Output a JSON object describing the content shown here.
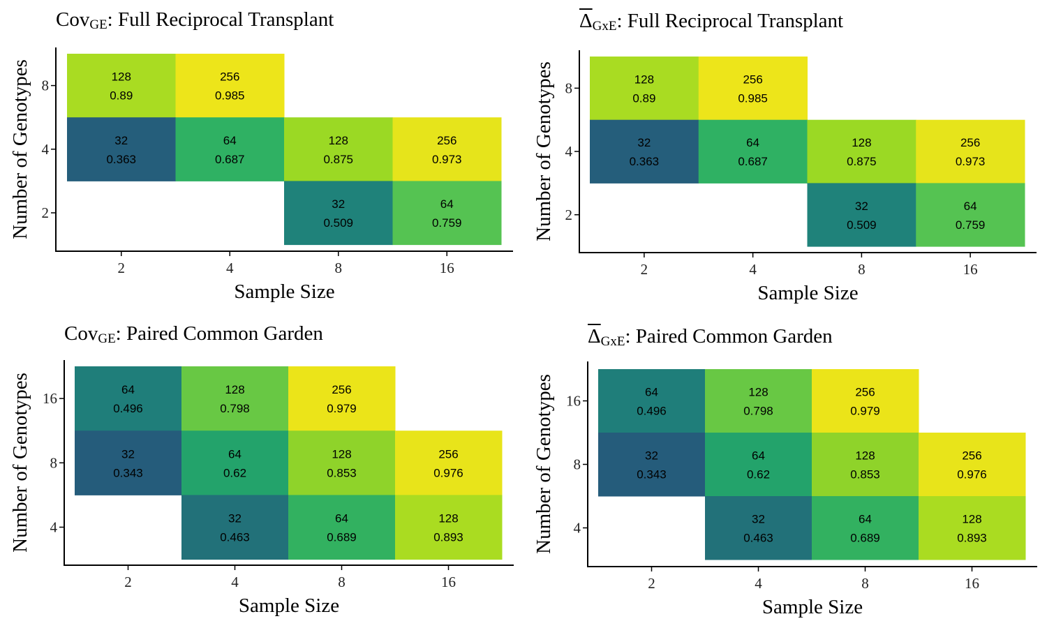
{
  "colors": {
    "0.343": "#255c7b",
    "0.363": "#255e7b",
    "0.463": "#227179",
    "0.496": "#1f7e7a",
    "0.509": "#1f827a",
    "0.62": "#23a36b",
    "0.687": "#2fb163",
    "0.689": "#32b160",
    "0.759": "#55c352",
    "0.798": "#68c844",
    "0.853": "#8fd32a",
    "0.875": "#9bd924",
    "0.89": "#a9dc22",
    "0.893": "#aadc21",
    "0.973": "#e6e41b",
    "0.976": "#e8e41a",
    "0.979": "#ebe419",
    "0.985": "#ede51a"
  },
  "chart_data": [
    {
      "type": "heatmap",
      "title_main": "Cov",
      "title_sub": "GE",
      "title_rest": ": Full Reciprocal Transplant",
      "xlabel": "Sample Size",
      "ylabel": "Number of Genotypes",
      "x_categories": [
        "2",
        "4",
        "8",
        "16"
      ],
      "y_categories": [
        "2",
        "4",
        "8"
      ],
      "cells": [
        {
          "x": "2",
          "y": "8",
          "n": "128",
          "value": "0.89"
        },
        {
          "x": "4",
          "y": "8",
          "n": "256",
          "value": "0.985"
        },
        {
          "x": "2",
          "y": "4",
          "n": "32",
          "value": "0.363"
        },
        {
          "x": "4",
          "y": "4",
          "n": "64",
          "value": "0.687"
        },
        {
          "x": "8",
          "y": "4",
          "n": "128",
          "value": "0.875"
        },
        {
          "x": "16",
          "y": "4",
          "n": "256",
          "value": "0.973"
        },
        {
          "x": "8",
          "y": "2",
          "n": "32",
          "value": "0.509"
        },
        {
          "x": "16",
          "y": "2",
          "n": "64",
          "value": "0.759"
        }
      ]
    },
    {
      "type": "heatmap",
      "title_main": "Δ",
      "title_overline": true,
      "title_sub": "GxE",
      "title_rest": ": Full Reciprocal Transplant",
      "xlabel": "Sample Size",
      "ylabel": "Number of Genotypes",
      "x_categories": [
        "2",
        "4",
        "8",
        "16"
      ],
      "y_categories": [
        "2",
        "4",
        "8"
      ],
      "cells": [
        {
          "x": "2",
          "y": "8",
          "n": "128",
          "value": "0.89"
        },
        {
          "x": "4",
          "y": "8",
          "n": "256",
          "value": "0.985"
        },
        {
          "x": "2",
          "y": "4",
          "n": "32",
          "value": "0.363"
        },
        {
          "x": "4",
          "y": "4",
          "n": "64",
          "value": "0.687"
        },
        {
          "x": "8",
          "y": "4",
          "n": "128",
          "value": "0.875"
        },
        {
          "x": "16",
          "y": "4",
          "n": "256",
          "value": "0.973"
        },
        {
          "x": "8",
          "y": "2",
          "n": "32",
          "value": "0.509"
        },
        {
          "x": "16",
          "y": "2",
          "n": "64",
          "value": "0.759"
        }
      ]
    },
    {
      "type": "heatmap",
      "title_main": "Cov",
      "title_sub": "GE",
      "title_rest": ": Paired Common Garden",
      "xlabel": "Sample Size",
      "ylabel": "Number of Genotypes",
      "x_categories": [
        "2",
        "4",
        "8",
        "16"
      ],
      "y_categories": [
        "4",
        "8",
        "16"
      ],
      "cells": [
        {
          "x": "2",
          "y": "16",
          "n": "64",
          "value": "0.496"
        },
        {
          "x": "4",
          "y": "16",
          "n": "128",
          "value": "0.798"
        },
        {
          "x": "8",
          "y": "16",
          "n": "256",
          "value": "0.979"
        },
        {
          "x": "2",
          "y": "8",
          "n": "32",
          "value": "0.343"
        },
        {
          "x": "4",
          "y": "8",
          "n": "64",
          "value": "0.62"
        },
        {
          "x": "8",
          "y": "8",
          "n": "128",
          "value": "0.853"
        },
        {
          "x": "16",
          "y": "8",
          "n": "256",
          "value": "0.976"
        },
        {
          "x": "4",
          "y": "4",
          "n": "32",
          "value": "0.463"
        },
        {
          "x": "8",
          "y": "4",
          "n": "64",
          "value": "0.689"
        },
        {
          "x": "16",
          "y": "4",
          "n": "128",
          "value": "0.893"
        }
      ]
    },
    {
      "type": "heatmap",
      "title_main": "Δ",
      "title_overline": true,
      "title_sub": "GxE",
      "title_rest": ": Paired Common Garden",
      "xlabel": "Sample Size",
      "ylabel": "Number of Genotypes",
      "x_categories": [
        "2",
        "4",
        "8",
        "16"
      ],
      "y_categories": [
        "4",
        "8",
        "16"
      ],
      "cells": [
        {
          "x": "2",
          "y": "16",
          "n": "64",
          "value": "0.496"
        },
        {
          "x": "4",
          "y": "16",
          "n": "128",
          "value": "0.798"
        },
        {
          "x": "8",
          "y": "16",
          "n": "256",
          "value": "0.979"
        },
        {
          "x": "2",
          "y": "8",
          "n": "32",
          "value": "0.343"
        },
        {
          "x": "4",
          "y": "8",
          "n": "64",
          "value": "0.62"
        },
        {
          "x": "8",
          "y": "8",
          "n": "128",
          "value": "0.853"
        },
        {
          "x": "16",
          "y": "8",
          "n": "256",
          "value": "0.976"
        },
        {
          "x": "4",
          "y": "4",
          "n": "32",
          "value": "0.463"
        },
        {
          "x": "8",
          "y": "4",
          "n": "64",
          "value": "0.689"
        },
        {
          "x": "16",
          "y": "4",
          "n": "128",
          "value": "0.893"
        }
      ]
    }
  ]
}
